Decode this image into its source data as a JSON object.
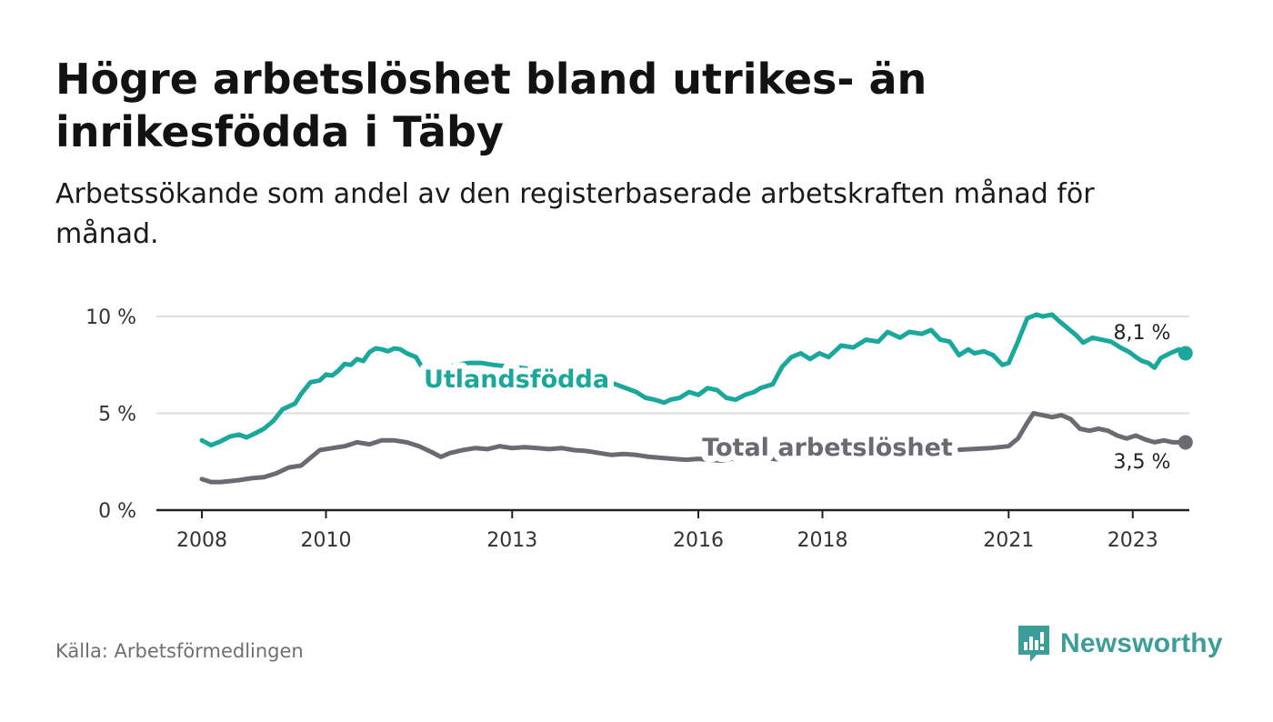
{
  "title": "Högre arbetslöshet bland utrikes- än inrikesfödda i Täby",
  "subtitle": "Arbetssökande som andel av den registerbaserade arbetskraften månad för månad.",
  "source": "Källa: Arbetsförmedlingen",
  "brand": {
    "name": "Newsworthy",
    "icon": "newsworthy-logo-icon",
    "color": "#3d9e99"
  },
  "colors": {
    "utlandsfodda": "#1aa79c",
    "total": "#6b6a73",
    "grid": "#dddddd",
    "axis": "#222222"
  },
  "chart_data": {
    "type": "line",
    "title": "Högre arbetslöshet bland utrikes- än inrikesfödda i Täby",
    "xlabel": "",
    "ylabel": "",
    "ylim": [
      0,
      10
    ],
    "xlim": [
      2008.0,
      2023.15
    ],
    "y_ticks": [
      {
        "value": 0,
        "label": "0 %"
      },
      {
        "value": 5,
        "label": "5 %"
      },
      {
        "value": 10,
        "label": "10 %"
      }
    ],
    "x_ticks": [
      {
        "value": 2008,
        "label": "2008"
      },
      {
        "value": 2010,
        "label": "2010"
      },
      {
        "value": 2013,
        "label": "2013"
      },
      {
        "value": 2016,
        "label": "2016"
      },
      {
        "value": 2018,
        "label": "2018"
      },
      {
        "value": 2021,
        "label": "2021"
      },
      {
        "value": 2023,
        "label": "2023"
      }
    ],
    "series": [
      {
        "name": "Utlandsfödda",
        "label": "Utlandsfödda",
        "end_label": "8,1 %",
        "end_value": 8.1,
        "points": [
          [
            2008.0,
            3.6
          ],
          [
            2008.15,
            3.35
          ],
          [
            2008.3,
            3.55
          ],
          [
            2008.45,
            3.8
          ],
          [
            2008.6,
            3.9
          ],
          [
            2008.72,
            3.75
          ],
          [
            2008.85,
            3.95
          ],
          [
            2009.0,
            4.2
          ],
          [
            2009.15,
            4.6
          ],
          [
            2009.3,
            5.2
          ],
          [
            2009.5,
            5.5
          ],
          [
            2009.6,
            6.0
          ],
          [
            2009.75,
            6.6
          ],
          [
            2009.9,
            6.7
          ],
          [
            2010.0,
            7.0
          ],
          [
            2010.1,
            6.95
          ],
          [
            2010.2,
            7.2
          ],
          [
            2010.3,
            7.55
          ],
          [
            2010.4,
            7.5
          ],
          [
            2010.5,
            7.8
          ],
          [
            2010.6,
            7.7
          ],
          [
            2010.7,
            8.15
          ],
          [
            2010.8,
            8.35
          ],
          [
            2010.9,
            8.3
          ],
          [
            2011.0,
            8.2
          ],
          [
            2011.1,
            8.35
          ],
          [
            2011.2,
            8.3
          ],
          [
            2011.3,
            8.1
          ],
          [
            2011.45,
            7.9
          ],
          [
            2011.6,
            7.1
          ],
          [
            2011.75,
            6.8
          ],
          [
            2011.9,
            7.3
          ],
          [
            2012.1,
            7.5
          ],
          [
            2012.3,
            7.6
          ],
          [
            2012.5,
            7.6
          ],
          [
            2012.7,
            7.5
          ],
          [
            2013.0,
            7.4
          ],
          [
            2013.5,
            7.2
          ],
          [
            2014.0,
            7.0
          ],
          [
            2014.5,
            6.7
          ],
          [
            2015.0,
            6.1
          ],
          [
            2015.15,
            5.8
          ],
          [
            2015.3,
            5.7
          ],
          [
            2015.45,
            5.55
          ],
          [
            2015.55,
            5.7
          ],
          [
            2015.7,
            5.8
          ],
          [
            2015.85,
            6.1
          ],
          [
            2016.0,
            5.95
          ],
          [
            2016.15,
            6.3
          ],
          [
            2016.3,
            6.2
          ],
          [
            2016.45,
            5.8
          ],
          [
            2016.6,
            5.7
          ],
          [
            2016.75,
            5.95
          ],
          [
            2016.9,
            6.1
          ],
          [
            2017.0,
            6.3
          ],
          [
            2017.2,
            6.5
          ],
          [
            2017.35,
            7.4
          ],
          [
            2017.5,
            7.9
          ],
          [
            2017.65,
            8.1
          ],
          [
            2017.8,
            7.8
          ],
          [
            2017.95,
            8.1
          ],
          [
            2018.1,
            7.9
          ],
          [
            2018.3,
            8.5
          ],
          [
            2018.5,
            8.4
          ],
          [
            2018.7,
            8.8
          ],
          [
            2018.9,
            8.7
          ],
          [
            2019.05,
            9.2
          ],
          [
            2019.25,
            8.9
          ],
          [
            2019.4,
            9.2
          ],
          [
            2019.6,
            9.1
          ],
          [
            2019.75,
            9.3
          ],
          [
            2019.9,
            8.8
          ],
          [
            2020.05,
            8.7
          ],
          [
            2020.2,
            8.0
          ],
          [
            2020.35,
            8.3
          ],
          [
            2020.45,
            8.1
          ],
          [
            2020.6,
            8.2
          ],
          [
            2020.75,
            8.0
          ],
          [
            2020.9,
            7.5
          ],
          [
            2021.0,
            7.6
          ],
          [
            2021.15,
            8.7
          ],
          [
            2021.3,
            9.9
          ],
          [
            2021.45,
            10.1
          ],
          [
            2021.55,
            10.0
          ],
          [
            2021.7,
            10.1
          ],
          [
            2021.8,
            9.8
          ],
          [
            2021.95,
            9.4
          ],
          [
            2022.1,
            9.0
          ],
          [
            2022.2,
            8.65
          ],
          [
            2022.35,
            8.9
          ],
          [
            2022.5,
            8.8
          ],
          [
            2022.65,
            8.7
          ],
          [
            2022.8,
            8.4
          ],
          [
            2022.95,
            8.15
          ],
          [
            2023.05,
            7.9
          ],
          [
            2023.15,
            7.7
          ],
          [
            2023.25,
            7.6
          ],
          [
            2023.35,
            7.35
          ],
          [
            2023.45,
            7.85
          ],
          [
            2023.6,
            8.1
          ],
          [
            2023.75,
            8.3
          ],
          [
            2023.85,
            8.1
          ]
        ]
      },
      {
        "name": "Total arbetslöshet",
        "label": "Total arbetslöshet",
        "end_label": "3,5 %",
        "end_value": 3.5,
        "points": [
          [
            2008.0,
            1.6
          ],
          [
            2008.15,
            1.45
          ],
          [
            2008.3,
            1.45
          ],
          [
            2008.45,
            1.5
          ],
          [
            2008.6,
            1.55
          ],
          [
            2008.8,
            1.65
          ],
          [
            2009.0,
            1.7
          ],
          [
            2009.2,
            1.9
          ],
          [
            2009.4,
            2.2
          ],
          [
            2009.6,
            2.3
          ],
          [
            2009.75,
            2.7
          ],
          [
            2009.9,
            3.1
          ],
          [
            2010.1,
            3.2
          ],
          [
            2010.3,
            3.3
          ],
          [
            2010.5,
            3.5
          ],
          [
            2010.7,
            3.4
          ],
          [
            2010.9,
            3.6
          ],
          [
            2011.1,
            3.6
          ],
          [
            2011.3,
            3.5
          ],
          [
            2011.5,
            3.3
          ],
          [
            2011.7,
            3.0
          ],
          [
            2011.85,
            2.75
          ],
          [
            2012.0,
            2.95
          ],
          [
            2012.2,
            3.1
          ],
          [
            2012.4,
            3.2
          ],
          [
            2012.6,
            3.15
          ],
          [
            2012.8,
            3.3
          ],
          [
            2013.0,
            3.2
          ],
          [
            2013.2,
            3.25
          ],
          [
            2013.4,
            3.2
          ],
          [
            2013.6,
            3.15
          ],
          [
            2013.8,
            3.2
          ],
          [
            2014.0,
            3.1
          ],
          [
            2014.2,
            3.05
          ],
          [
            2014.4,
            2.95
          ],
          [
            2014.6,
            2.85
          ],
          [
            2014.8,
            2.9
          ],
          [
            2015.0,
            2.85
          ],
          [
            2015.2,
            2.75
          ],
          [
            2015.4,
            2.7
          ],
          [
            2015.6,
            2.65
          ],
          [
            2015.8,
            2.6
          ],
          [
            2016.0,
            2.65
          ],
          [
            2016.2,
            2.6
          ],
          [
            2016.4,
            2.55
          ],
          [
            2016.6,
            2.7
          ],
          [
            2016.8,
            2.65
          ],
          [
            2017.0,
            2.7
          ],
          [
            2017.2,
            2.65
          ],
          [
            2017.4,
            2.6
          ],
          [
            2017.6,
            2.65
          ],
          [
            2017.8,
            2.7
          ],
          [
            2018.0,
            2.75
          ],
          [
            2018.3,
            2.8
          ],
          [
            2018.6,
            2.85
          ],
          [
            2018.9,
            2.9
          ],
          [
            2019.2,
            2.95
          ],
          [
            2019.5,
            3.0
          ],
          [
            2019.8,
            3.05
          ],
          [
            2020.1,
            3.1
          ],
          [
            2020.4,
            3.15
          ],
          [
            2020.7,
            3.2
          ],
          [
            2021.0,
            3.3
          ],
          [
            2021.15,
            3.7
          ],
          [
            2021.3,
            4.5
          ],
          [
            2021.4,
            5.0
          ],
          [
            2021.55,
            4.9
          ],
          [
            2021.7,
            4.8
          ],
          [
            2021.85,
            4.9
          ],
          [
            2022.0,
            4.7
          ],
          [
            2022.15,
            4.2
          ],
          [
            2022.3,
            4.1
          ],
          [
            2022.45,
            4.2
          ],
          [
            2022.6,
            4.1
          ],
          [
            2022.75,
            3.85
          ],
          [
            2022.9,
            3.7
          ],
          [
            2023.05,
            3.85
          ],
          [
            2023.2,
            3.65
          ],
          [
            2023.35,
            3.5
          ],
          [
            2023.5,
            3.6
          ],
          [
            2023.65,
            3.5
          ],
          [
            2023.85,
            3.5
          ]
        ]
      }
    ]
  }
}
